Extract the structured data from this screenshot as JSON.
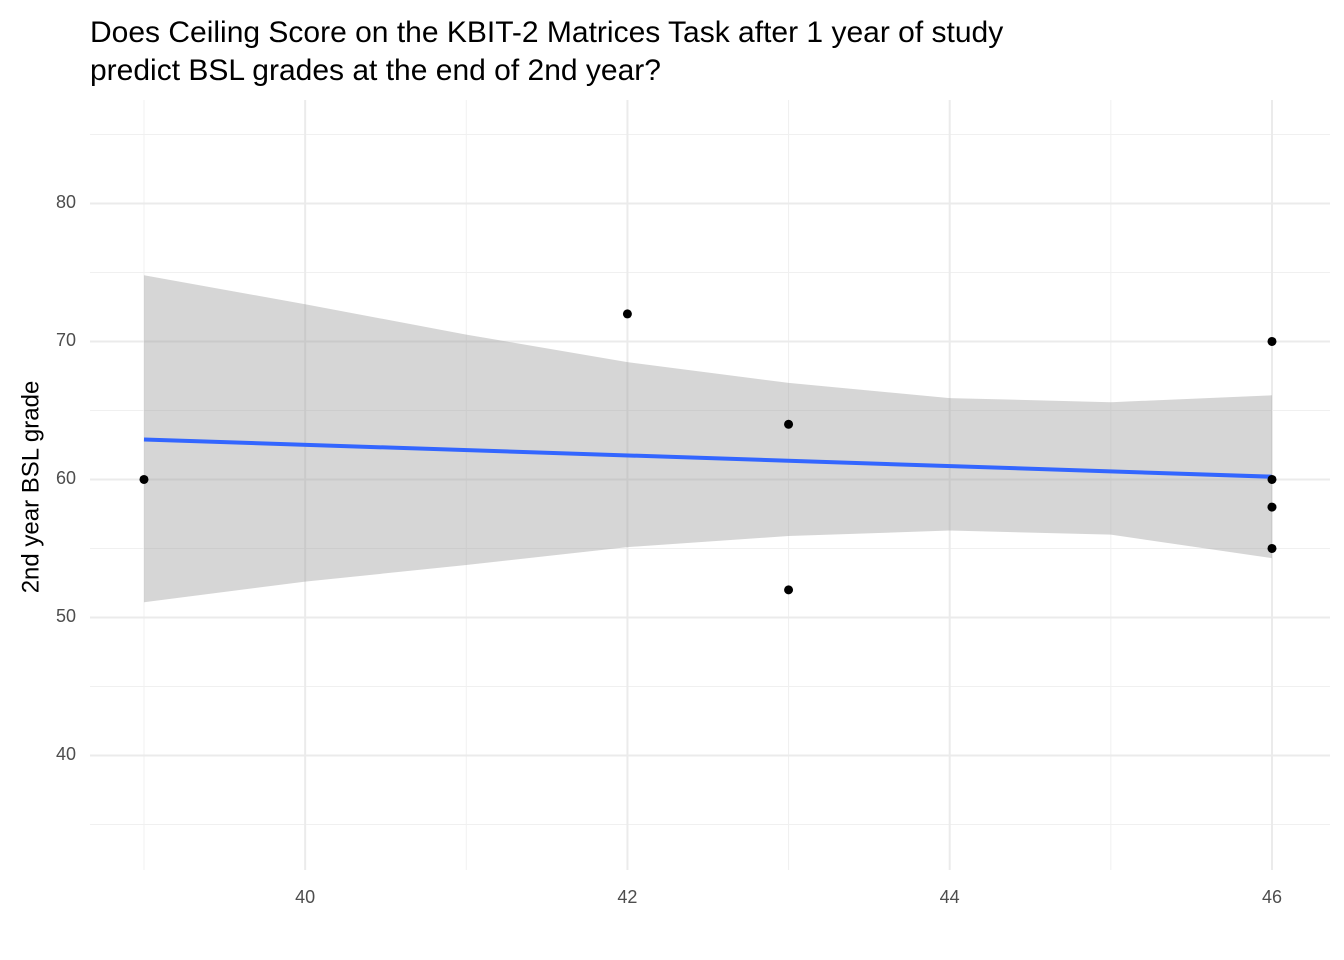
{
  "chart_data": {
    "type": "scatter",
    "title": [
      "Does Ceiling Score on the KBIT-2 Matrices Task after 1 year of study",
      "predict BSL grades at the end of 2nd year?"
    ],
    "ylabel": "2nd year BSL grade",
    "x": [
      39,
      42,
      43,
      43,
      46,
      46,
      46,
      46
    ],
    "y": [
      60,
      72,
      64,
      52,
      70,
      60,
      58,
      55
    ],
    "color": "#000000",
    "fit": {
      "x": [
        39,
        46
      ],
      "values": [
        62.9,
        60.2
      ],
      "color": "#3366ff"
    },
    "band": {
      "x": [
        39,
        40,
        41,
        42,
        43,
        44,
        45,
        46
      ],
      "upper": [
        74.8,
        72.7,
        70.5,
        68.5,
        67.0,
        65.9,
        65.6,
        66.1
      ],
      "lower": [
        51.1,
        52.6,
        53.8,
        55.1,
        55.9,
        56.3,
        56.0,
        54.3
      ],
      "color": "#999999"
    },
    "xlim": [
      38.665,
      46.36
    ],
    "ylim": [
      31.7,
      87.5
    ],
    "xticks": [
      40,
      42,
      44,
      46
    ],
    "yticks": [
      40,
      50,
      60,
      70,
      80
    ],
    "x_minor_grid": [
      39,
      41,
      43,
      45
    ],
    "y_minor_grid": [
      35,
      45,
      55,
      65,
      75,
      85
    ],
    "grid": true
  }
}
